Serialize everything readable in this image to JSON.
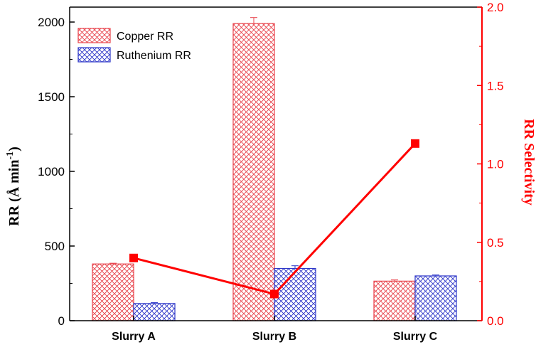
{
  "chart_data": {
    "type": "bar",
    "categories": [
      "Slurry A",
      "Slurry B",
      "Slurry C"
    ],
    "series": [
      {
        "name": "Copper RR",
        "values": [
          380,
          1990,
          265
        ],
        "errors": [
          5,
          40,
          8
        ],
        "color": "#e8414a",
        "axis": "left"
      },
      {
        "name": "Ruthenium RR",
        "values": [
          115,
          350,
          300
        ],
        "errors": [
          6,
          18,
          6
        ],
        "color": "#2c35c8",
        "axis": "left"
      }
    ],
    "line_series": {
      "values": [
        0.4,
        0.17,
        1.13
      ],
      "color": "#ff0000",
      "axis": "right"
    },
    "ylabel": "RR (Å min",
    "ylabel_sup": "-1",
    "ylabel_close": ")",
    "y2label": "RR Selectivity",
    "ylim": [
      0,
      2100
    ],
    "yticks": [
      "0",
      "500",
      "1000",
      "1500",
      "2000"
    ],
    "y2lim": [
      0,
      2.0
    ],
    "y2ticks": [
      "0.0",
      "0.5",
      "1.0",
      "1.5",
      "2.0"
    ],
    "legend_position": "top-left",
    "grid": false
  }
}
